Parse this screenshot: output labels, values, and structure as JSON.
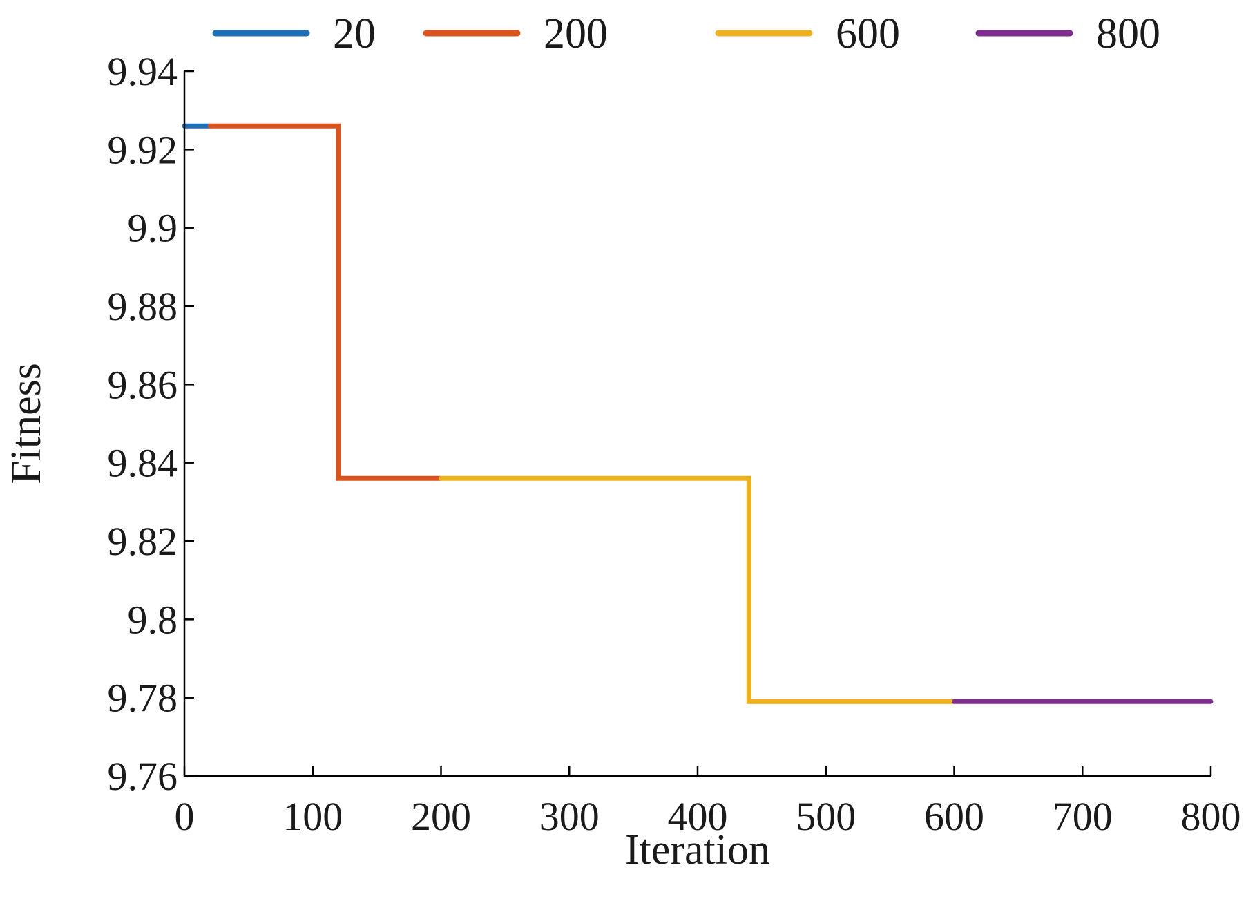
{
  "chart_data": {
    "type": "line",
    "xlabel": "Iteration",
    "ylabel": "Fitness",
    "xlim": [
      0,
      800
    ],
    "ylim": [
      9.76,
      9.94
    ],
    "x_ticks": [
      0,
      100,
      200,
      300,
      400,
      500,
      600,
      700,
      800
    ],
    "x_tick_labels": [
      "0",
      "100",
      "200",
      "300",
      "400",
      "500",
      "600",
      "700",
      "800"
    ],
    "y_ticks": [
      9.76,
      9.78,
      9.8,
      9.82,
      9.84,
      9.86,
      9.88,
      9.9,
      9.92,
      9.94
    ],
    "y_tick_labels": [
      "9.76",
      "9.78",
      "9.8",
      "9.82",
      "9.84",
      "9.86",
      "9.88",
      "9.9",
      "9.92",
      "9.94"
    ],
    "grid": false,
    "legend_position": "top",
    "series": [
      {
        "name": "20",
        "color": "#1f6fb5",
        "points": [
          [
            0,
            9.926
          ],
          [
            20,
            9.926
          ]
        ]
      },
      {
        "name": "200",
        "color": "#d9541e",
        "points": [
          [
            20,
            9.926
          ],
          [
            120,
            9.926
          ],
          [
            120,
            9.836
          ],
          [
            200,
            9.836
          ]
        ]
      },
      {
        "name": "600",
        "color": "#edb120",
        "points": [
          [
            200,
            9.836
          ],
          [
            440,
            9.836
          ],
          [
            440,
            9.779
          ],
          [
            600,
            9.779
          ]
        ]
      },
      {
        "name": "800",
        "color": "#7e2f8e",
        "points": [
          [
            600,
            9.779
          ],
          [
            800,
            9.779
          ]
        ]
      }
    ]
  }
}
